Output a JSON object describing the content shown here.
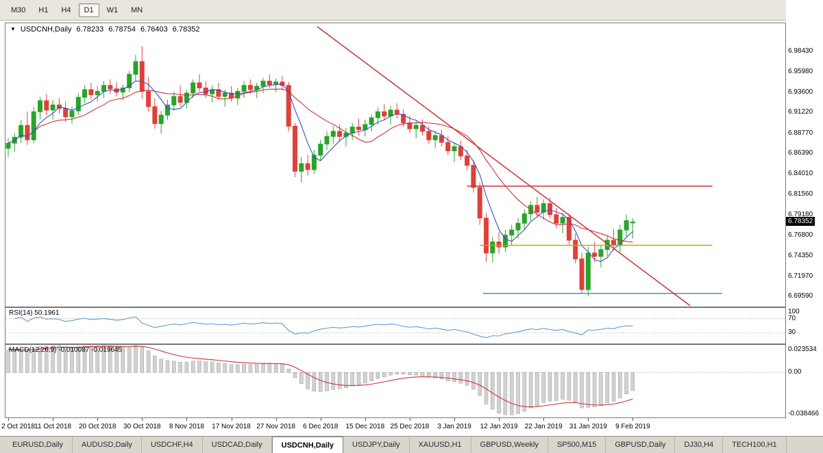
{
  "toolbar": {
    "timeframes": [
      {
        "label": "M30",
        "active": false
      },
      {
        "label": "H1",
        "active": false
      },
      {
        "label": "H4",
        "active": false
      },
      {
        "label": "D1",
        "active": true
      },
      {
        "label": "W1",
        "active": false
      },
      {
        "label": "MN",
        "active": false
      }
    ]
  },
  "chart": {
    "menu_icon": "▼",
    "symbol_label": "USDCNH,Daily",
    "ohlc": {
      "open": "6.78233",
      "high": "6.78754",
      "low": "6.76403",
      "close": "6.78352"
    },
    "current_price": "6.78352",
    "price_axis": {
      "min": 6.684,
      "max": 7.017,
      "ticks": [
        "6.98430",
        "6.95980",
        "6.93600",
        "6.91220",
        "6.88770",
        "6.86390",
        "6.84010",
        "6.81560",
        "6.79180",
        "6.76800",
        "6.74350",
        "6.71970",
        "6.69590"
      ]
    },
    "colors": {
      "up": "#28a428",
      "down": "#e0403a",
      "ma_fast": "#3050c8",
      "ma_slow": "#cc3333",
      "background": "#ffffff"
    }
  },
  "rsi": {
    "label": "RSI(14) 50.1961",
    "value": 50.1961,
    "color": "#5f9ccc",
    "levels": [
      {
        "label": "100",
        "value": 100
      },
      {
        "label": "70",
        "value": 70
      },
      {
        "label": "30",
        "value": 30
      }
    ]
  },
  "macd": {
    "label": "MACD(12,26,9) -0.010087 -0.019645",
    "values": [
      -0.010087,
      -0.019645
    ],
    "signal_color": "#cc3333",
    "bar_fill": "#d2d2d2",
    "bar_stroke": "#999999",
    "scale": [
      {
        "label": "0.023534",
        "value": 0.023534
      },
      {
        "label": "0.00",
        "value": 0
      },
      {
        "label": "-0.038466",
        "value": -0.038466
      }
    ]
  },
  "tabs": [
    {
      "label": "EURUSD,Daily",
      "active": false
    },
    {
      "label": "AUDUSD,Daily",
      "active": false
    },
    {
      "label": "USDCHF,H4",
      "active": false
    },
    {
      "label": "USDCAD,Daily",
      "active": false
    },
    {
      "label": "USDCNH,Daily",
      "active": true
    },
    {
      "label": "USDJPY,Daily",
      "active": false
    },
    {
      "label": "XAUUSD,H1",
      "active": false
    },
    {
      "label": "GBPUSD,Weekly",
      "active": false
    },
    {
      "label": "SP500,M15",
      "active": false
    },
    {
      "label": "GBPUSD,Daily",
      "active": false
    },
    {
      "label": "DJ30,H4",
      "active": false
    },
    {
      "label": "TECH100,H1",
      "active": false
    }
  ],
  "chart_data": {
    "type": "candlestick",
    "symbol": "USDCNH",
    "timeframe": "Daily",
    "ohlc_current": {
      "open": 6.78233,
      "high": 6.78754,
      "low": 6.76403,
      "close": 6.78352
    },
    "candles": [
      [
        6.87,
        6.882,
        6.86,
        6.876
      ],
      [
        6.876,
        6.888,
        6.866,
        6.883
      ],
      [
        6.883,
        6.903,
        6.876,
        6.897
      ],
      [
        6.897,
        6.913,
        6.874,
        6.88
      ],
      [
        6.88,
        6.919,
        6.876,
        6.913
      ],
      [
        6.913,
        6.93,
        6.904,
        6.926
      ],
      [
        6.926,
        6.934,
        6.909,
        6.915
      ],
      [
        6.915,
        6.927,
        6.904,
        6.921
      ],
      [
        6.921,
        6.929,
        6.911,
        6.917
      ],
      [
        6.917,
        6.925,
        6.901,
        6.907
      ],
      [
        6.907,
        6.919,
        6.899,
        6.914
      ],
      [
        6.914,
        6.935,
        6.909,
        6.93
      ],
      [
        6.93,
        6.944,
        6.923,
        6.939
      ],
      [
        6.939,
        6.947,
        6.927,
        6.933
      ],
      [
        6.933,
        6.943,
        6.925,
        6.937
      ],
      [
        6.937,
        6.949,
        6.929,
        6.944
      ],
      [
        6.944,
        6.951,
        6.934,
        6.94
      ],
      [
        6.94,
        6.948,
        6.931,
        6.936
      ],
      [
        6.936,
        6.945,
        6.927,
        6.941
      ],
      [
        6.941,
        6.961,
        6.936,
        6.957
      ],
      [
        6.957,
        6.98,
        6.949,
        6.972
      ],
      [
        6.972,
        6.99,
        6.928,
        6.937
      ],
      [
        6.937,
        6.954,
        6.913,
        6.919
      ],
      [
        6.919,
        6.929,
        6.893,
        6.899
      ],
      [
        6.899,
        6.914,
        6.887,
        6.909
      ],
      [
        6.909,
        6.927,
        6.903,
        6.921
      ],
      [
        6.921,
        6.937,
        6.914,
        6.931
      ],
      [
        6.931,
        6.944,
        6.919,
        6.924
      ],
      [
        6.924,
        6.939,
        6.917,
        6.935
      ],
      [
        6.935,
        6.951,
        6.929,
        6.947
      ],
      [
        6.947,
        6.957,
        6.937,
        6.941
      ],
      [
        6.941,
        6.949,
        6.929,
        6.934
      ],
      [
        6.934,
        6.944,
        6.924,
        6.939
      ],
      [
        6.939,
        6.947,
        6.927,
        6.931
      ],
      [
        6.931,
        6.939,
        6.919,
        6.935
      ],
      [
        6.935,
        6.943,
        6.925,
        6.929
      ],
      [
        6.929,
        6.941,
        6.921,
        6.937
      ],
      [
        6.937,
        6.949,
        6.929,
        6.944
      ],
      [
        6.944,
        6.951,
        6.934,
        6.939
      ],
      [
        6.939,
        6.947,
        6.929,
        6.943
      ],
      [
        6.943,
        6.953,
        6.935,
        6.949
      ],
      [
        6.949,
        6.957,
        6.941,
        6.945
      ],
      [
        6.945,
        6.952,
        6.936,
        6.948
      ],
      [
        6.948,
        6.955,
        6.938,
        6.944
      ],
      [
        6.944,
        6.948,
        6.89,
        6.896
      ],
      [
        6.896,
        6.9,
        6.836,
        6.843
      ],
      [
        6.843,
        6.86,
        6.83,
        6.852
      ],
      [
        6.852,
        6.862,
        6.838,
        6.845
      ],
      [
        6.845,
        6.868,
        6.84,
        6.862
      ],
      [
        6.862,
        6.88,
        6.855,
        6.875
      ],
      [
        6.875,
        6.89,
        6.868,
        6.884
      ],
      [
        6.884,
        6.896,
        6.875,
        6.89
      ],
      [
        6.89,
        6.898,
        6.878,
        6.884
      ],
      [
        6.884,
        6.894,
        6.872,
        6.888
      ],
      [
        6.888,
        6.9,
        6.88,
        6.895
      ],
      [
        6.895,
        6.905,
        6.885,
        6.892
      ],
      [
        6.892,
        6.904,
        6.884,
        6.898
      ],
      [
        6.898,
        6.91,
        6.89,
        6.906
      ],
      [
        6.906,
        6.918,
        6.898,
        6.913
      ],
      [
        6.913,
        6.922,
        6.903,
        6.908
      ],
      [
        6.908,
        6.92,
        6.898,
        6.915
      ],
      [
        6.915,
        6.923,
        6.905,
        6.91
      ],
      [
        6.91,
        6.916,
        6.895,
        6.9
      ],
      [
        6.9,
        6.908,
        6.888,
        6.893
      ],
      [
        6.893,
        6.902,
        6.882,
        6.897
      ],
      [
        6.897,
        6.904,
        6.885,
        6.89
      ],
      [
        6.89,
        6.896,
        6.875,
        6.88
      ],
      [
        6.88,
        6.89,
        6.87,
        6.885
      ],
      [
        6.885,
        6.892,
        6.872,
        6.877
      ],
      [
        6.877,
        6.884,
        6.862,
        6.867
      ],
      [
        6.867,
        6.877,
        6.854,
        6.872
      ],
      [
        6.872,
        6.879,
        6.856,
        6.861
      ],
      [
        6.861,
        6.868,
        6.844,
        6.85
      ],
      [
        6.85,
        6.856,
        6.818,
        6.824
      ],
      [
        6.824,
        6.83,
        6.78,
        6.788
      ],
      [
        6.788,
        6.794,
        6.737,
        6.747
      ],
      [
        6.747,
        6.766,
        6.736,
        6.76
      ],
      [
        6.76,
        6.772,
        6.746,
        6.754
      ],
      [
        6.754,
        6.774,
        6.748,
        6.768
      ],
      [
        6.768,
        6.78,
        6.756,
        6.774
      ],
      [
        6.774,
        6.788,
        6.764,
        6.782
      ],
      [
        6.782,
        6.798,
        6.774,
        6.793
      ],
      [
        6.793,
        6.808,
        6.785,
        6.803
      ],
      [
        6.803,
        6.813,
        6.79,
        6.795
      ],
      [
        6.795,
        6.81,
        6.786,
        6.805
      ],
      [
        6.805,
        6.812,
        6.788,
        6.792
      ],
      [
        6.792,
        6.8,
        6.776,
        6.782
      ],
      [
        6.782,
        6.794,
        6.77,
        6.789
      ],
      [
        6.789,
        6.793,
        6.757,
        6.762
      ],
      [
        6.762,
        6.77,
        6.735,
        6.74
      ],
      [
        6.74,
        6.747,
        6.699,
        6.704
      ],
      [
        6.704,
        6.754,
        6.696,
        6.747
      ],
      [
        6.747,
        6.76,
        6.736,
        6.743
      ],
      [
        6.743,
        6.756,
        6.73,
        6.751
      ],
      [
        6.751,
        6.768,
        6.743,
        6.762
      ],
      [
        6.762,
        6.775,
        6.75,
        6.756
      ],
      [
        6.756,
        6.78,
        6.748,
        6.774
      ],
      [
        6.774,
        6.792,
        6.766,
        6.785
      ],
      [
        6.78233,
        6.78754,
        6.76403,
        6.78352
      ]
    ],
    "date_labels": [
      {
        "label": "2 Oct 2018",
        "index": 0
      },
      {
        "label": "11 Oct 2018",
        "index": 7
      },
      {
        "label": "20 Oct 2018",
        "index": 14
      },
      {
        "label": "30 Oct 2018",
        "index": 21
      },
      {
        "label": "8 Nov 2018",
        "index": 28
      },
      {
        "label": "17 Nov 2018",
        "index": 35
      },
      {
        "label": "27 Nov 2018",
        "index": 42
      },
      {
        "label": "6 Dec 2018",
        "index": 49
      },
      {
        "label": "15 Dec 2018",
        "index": 56
      },
      {
        "label": "25 Dec 2018",
        "index": 63
      },
      {
        "label": "3 Jan 2019",
        "index": 70
      },
      {
        "label": "12 Jan 2019",
        "index": 77
      },
      {
        "label": "22 Jan 2019",
        "index": 84
      },
      {
        "label": "31 Jan 2019",
        "index": 91
      },
      {
        "label": "9 Feb 2019",
        "index": 98
      }
    ],
    "overlays": {
      "ma_fast": {
        "period": 5,
        "color": "#3050c8"
      },
      "ma_slow": {
        "period": 13,
        "color": "#cc3333"
      },
      "trendline": {
        "name": "descending-trendline",
        "from": {
          "index": 48.5,
          "price": 7.013
        },
        "to": {
          "index": 107,
          "price": 6.685
        },
        "color": "#cc3333"
      },
      "hlines": [
        {
          "name": "resistance-line-red",
          "price": 6.8256,
          "from_index": 72,
          "to_index": 110.5,
          "color": "#cc3333"
        },
        {
          "name": "support-line-yellow",
          "price": 6.756,
          "from_index": 74,
          "to_index": 110.5,
          "color": "#b5b000"
        },
        {
          "name": "support-line-blue",
          "price": 6.6995,
          "from_index": 74.5,
          "to_index": 112,
          "color": "#4a90c0"
        }
      ]
    },
    "indicators": [
      {
        "name": "RSI",
        "params": [
          14
        ],
        "last_value": 50.1961
      },
      {
        "name": "MACD",
        "params": [
          12,
          26,
          9
        ],
        "last_values": [
          -0.010087,
          -0.019645
        ]
      }
    ]
  }
}
